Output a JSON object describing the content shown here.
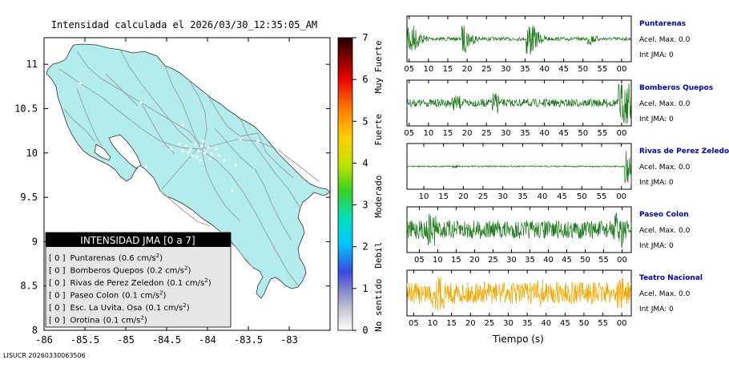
{
  "map": {
    "title": "Intensidad calculada el 2026/03/30_12:35:05_AM",
    "x_ticks": [
      "-86",
      "-85.5",
      "-85",
      "-84.5",
      "-84",
      "-83.5",
      "-83"
    ],
    "y_ticks": [
      "11",
      "10.5",
      "10",
      "9.5",
      "9",
      "8.5",
      "8"
    ],
    "xlim": [
      -86,
      -82.5
    ],
    "ylim": [
      8,
      11.3
    ],
    "land_color": "#b2ecec",
    "road_color": "#9a9a9a"
  },
  "legend": {
    "title": "INTENSIDAD JMA [0 a 7]",
    "items": [
      {
        "prefix": "[ 0 ]",
        "name": "Puntarenas",
        "value": "(0.6 cm/s",
        "sup": "2",
        "close": ")"
      },
      {
        "prefix": "[ 0 ]",
        "name": "Bomberos Quepos",
        "value": "(0.2 cm/s",
        "sup": "2",
        "close": ")"
      },
      {
        "prefix": "[ 0 ]",
        "name": "Rivas de Perez Zeledon",
        "value": "(0.1 cm/s",
        "sup": "2",
        "close": ")"
      },
      {
        "prefix": "[ 0 ]",
        "name": "Paseo Colon",
        "value": "(0.1 cm/s",
        "sup": "2",
        "close": ")"
      },
      {
        "prefix": "[ 0 ]",
        "name": "Esc. La Uvita. Osa",
        "value": "(0.1 cm/s",
        "sup": "2",
        "close": ")"
      },
      {
        "prefix": "[ 0 ]",
        "name": "Orotina",
        "value": "(0.1 cm/s",
        "sup": "2",
        "close": ")"
      }
    ]
  },
  "colorbar": {
    "ticks": [
      "7",
      "6",
      "5",
      "4",
      "3",
      "2",
      "1",
      "0"
    ],
    "labels": [
      "Muy Fuerte",
      "Fuerte",
      "Moderado",
      "Debil",
      "No sentido"
    ]
  },
  "footer": "LISUCR 20260330063506",
  "chart_data": {
    "type": "line",
    "xlabel": "Tiempo (s)",
    "panels": [
      {
        "station": "Puntarenas",
        "acel": "Acel. Max. 0.0",
        "int": "Int JMA: 0",
        "color": "#1a7a1a",
        "ticks": [
          "05",
          "10",
          "15",
          "20",
          "25",
          "30",
          "35",
          "40",
          "45",
          "50",
          "55",
          "00"
        ],
        "tick_offset": 0.01
      },
      {
        "station": "Bomberos Quepos",
        "acel": "Acel. Max. 0.0",
        "int": "Int JMA: 0",
        "color": "#1a7a1a",
        "ticks": [
          "05",
          "10",
          "15",
          "20",
          "25",
          "30",
          "35",
          "40",
          "45",
          "50",
          "55",
          "00"
        ],
        "tick_offset": 0.01
      },
      {
        "station": "Rivas de Perez Zeledon",
        "acel": "Acel. Max. 0.0",
        "int": "Int JMA: 0",
        "color": "#1a7a1a",
        "ticks": [
          "10",
          "15",
          "20",
          "25",
          "30",
          "35",
          "40",
          "45",
          "50",
          "55",
          "00"
        ],
        "tick_offset": 0.075
      },
      {
        "station": "Paseo Colon",
        "acel": "Acel. Max. 0.0",
        "int": "Int JMA: 0",
        "color": "#1a7a1a",
        "ticks": [
          "05",
          "10",
          "15",
          "20",
          "25",
          "30",
          "35",
          "40",
          "45",
          "50",
          "55",
          "00"
        ],
        "tick_offset": 0.055
      },
      {
        "station": "Teatro Nacional",
        "acel": "Acel. Max. 0.0",
        "int": "Int JMA: 0",
        "color": "#f5a800",
        "ticks": [
          "05",
          "10",
          "15",
          "20",
          "25",
          "30",
          "35",
          "40",
          "45",
          "50",
          "55",
          "00"
        ],
        "tick_offset": 0.03
      }
    ]
  }
}
